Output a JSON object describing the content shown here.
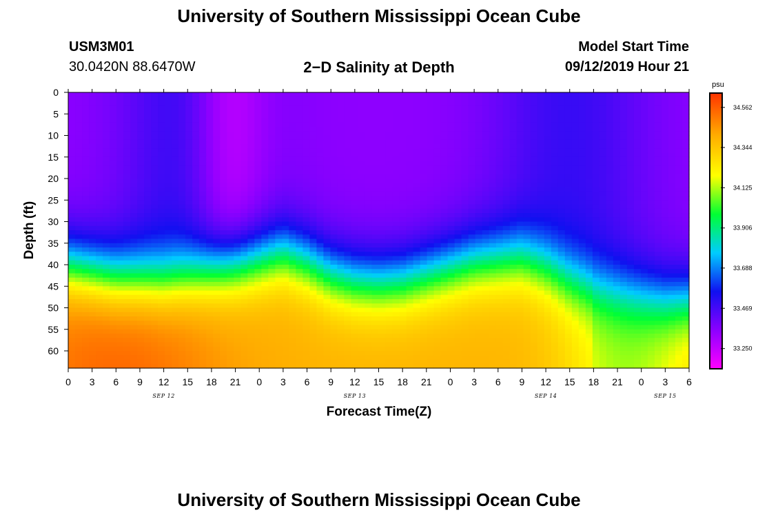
{
  "title_top": "University of Southern Mississippi Ocean Cube",
  "title_bottom": "University of Southern Mississippi Ocean Cube",
  "station": {
    "id": "USM3M01",
    "coords": "30.0420N 88.6470W"
  },
  "plot_title": "2−D Salinity at Depth",
  "model_start": {
    "label": "Model Start Time",
    "value": "09/12/2019 Hour 21"
  },
  "colors": {
    "ramp": [
      "#ff00ff",
      "#8c00ff",
      "#1010f0",
      "#00ccff",
      "#00ff33",
      "#ffff00",
      "#ffaa00",
      "#ff3300"
    ]
  },
  "chart_data": {
    "type": "heatmap",
    "title": "2−D Salinity at Depth",
    "xlabel": "Forecast Time(Z)",
    "ylabel": "Depth (ft)",
    "x_tick_labels": [
      "0",
      "3",
      "6",
      "9",
      "12",
      "15",
      "18",
      "21",
      "0",
      "3",
      "6",
      "9",
      "12",
      "15",
      "18",
      "21",
      "0",
      "3",
      "6",
      "9",
      "12",
      "15",
      "18",
      "21",
      "0",
      "3",
      "6"
    ],
    "x_range_hours": [
      0,
      78
    ],
    "date_labels": [
      {
        "text": "SEP 12",
        "hour": 12
      },
      {
        "text": "SEP 13",
        "hour": 36
      },
      {
        "text": "SEP 14",
        "hour": 60
      },
      {
        "text": "SEP 15",
        "hour": 75
      }
    ],
    "y_tick_labels": [
      "0",
      "5",
      "10",
      "15",
      "20",
      "25",
      "30",
      "35",
      "40",
      "45",
      "50",
      "55",
      "60"
    ],
    "y_range_ft": [
      0,
      64
    ],
    "colorbar": {
      "unit": "psu",
      "tick_labels": [
        "34.562",
        "34.344",
        "34.125",
        "33.906",
        "33.688",
        "33.469",
        "33.250"
      ],
      "range": [
        33.14,
        34.64
      ]
    },
    "halocline_depth_ft": [
      [
        0,
        35
      ],
      [
        6,
        37.5
      ],
      [
        12,
        38
      ],
      [
        18,
        36
      ],
      [
        21,
        35
      ],
      [
        24,
        33.5
      ],
      [
        27,
        32
      ],
      [
        30,
        34
      ],
      [
        33,
        37
      ],
      [
        36,
        38.5
      ],
      [
        39,
        39
      ],
      [
        42,
        38.5
      ],
      [
        45,
        37
      ],
      [
        48,
        35.5
      ],
      [
        51,
        34
      ],
      [
        54,
        33.5
      ],
      [
        57,
        33
      ],
      [
        60,
        35
      ],
      [
        63,
        38
      ],
      [
        66,
        40
      ],
      [
        69,
        41
      ],
      [
        72,
        42
      ],
      [
        75,
        43
      ],
      [
        78,
        43
      ]
    ]
  }
}
